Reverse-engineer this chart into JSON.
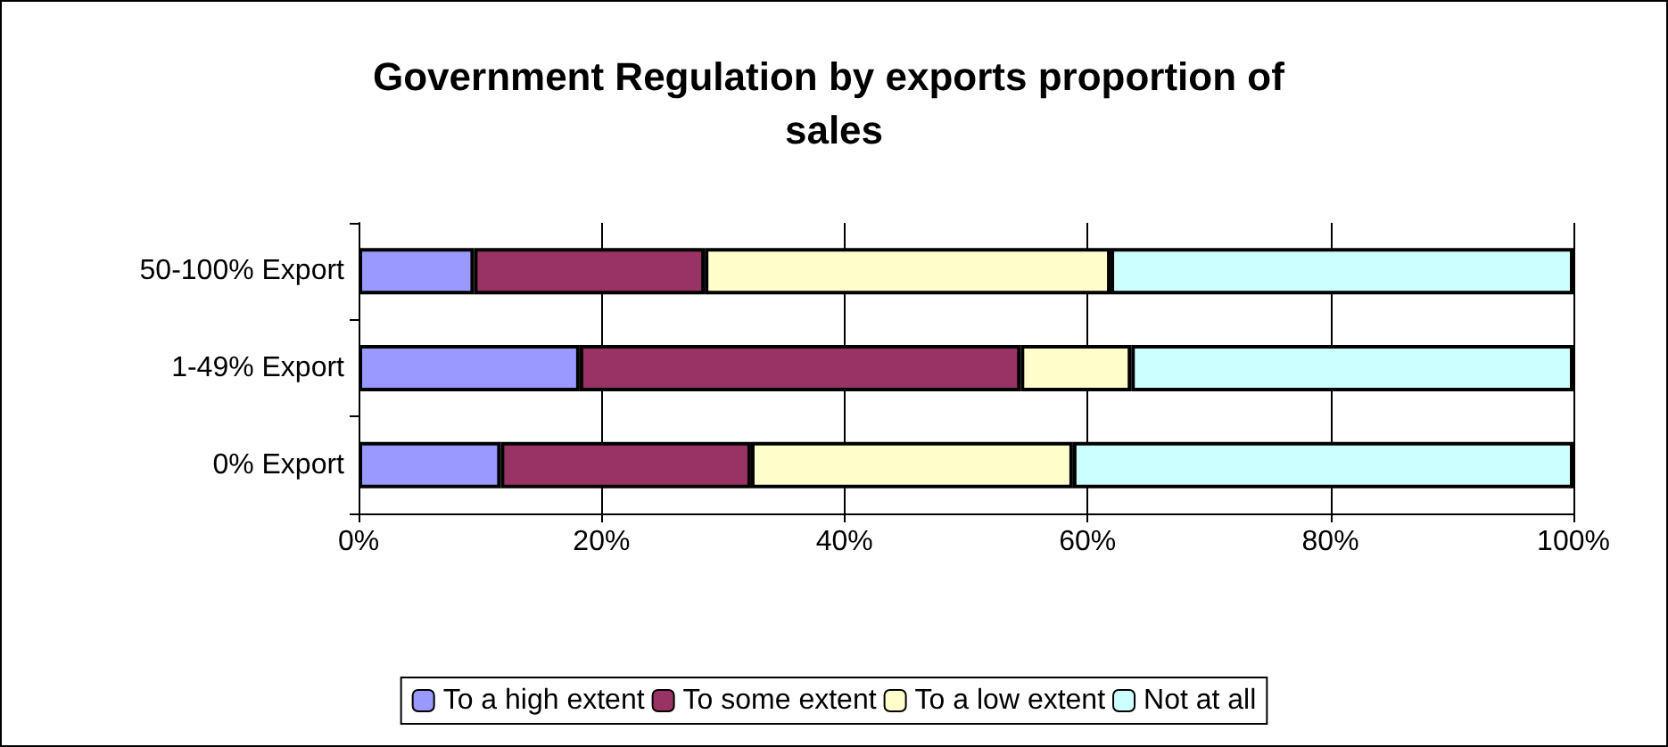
{
  "chart_data": {
    "type": "bar",
    "title": "Government Regulation by exports proportion of sales",
    "orientation": "horizontal",
    "stacked": true,
    "categories": [
      "50-100% Export",
      "1-49% Export",
      "0% Export"
    ],
    "series": [
      {
        "name": "To a high extent",
        "color": "#9999ff",
        "values": [
          9.5,
          18.2,
          11.7
        ]
      },
      {
        "name": "To some extent",
        "color": "#993366",
        "values": [
          19.0,
          36.3,
          20.6
        ]
      },
      {
        "name": "To a low extent",
        "color": "#ffffcc",
        "values": [
          33.4,
          9.1,
          26.5
        ]
      },
      {
        "name": "Not at all",
        "color": "#ccffff",
        "values": [
          38.1,
          36.4,
          41.2
        ]
      }
    ],
    "xlim": [
      0,
      100
    ],
    "xticks": [
      {
        "value": 0,
        "label": "0%"
      },
      {
        "value": 20,
        "label": "20%"
      },
      {
        "value": 40,
        "label": "40%"
      },
      {
        "value": 60,
        "label": "60%"
      },
      {
        "value": 80,
        "label": "80%"
      },
      {
        "value": 100,
        "label": "100%"
      }
    ],
    "grid": "x",
    "legend": "bottom"
  }
}
